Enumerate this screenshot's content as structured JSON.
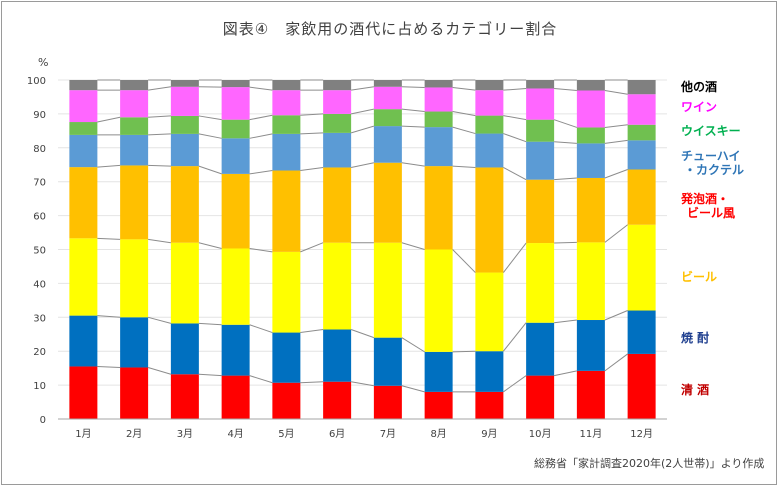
{
  "title": "図表④　家飲用の酒代に占めるカテゴリー割合",
  "y_unit": "%",
  "source": "総務省「家計調査2020年(2人世帯)」より作成",
  "legend": {
    "other": "他の酒",
    "wine": "ワイン",
    "whisky": "ウイスキー",
    "chuhai_line1": "チューハイ",
    "chuhai_line2": "・カクテル",
    "happoshu_line1": "発泡酒・",
    "happoshu_line2": "ビール風",
    "beer": "ビール",
    "shochu": "焼 酎",
    "sake": "清 酒"
  },
  "chart_data": {
    "type": "bar",
    "stacked": true,
    "categories": [
      "1月",
      "2月",
      "3月",
      "4月",
      "5月",
      "6月",
      "7月",
      "8月",
      "9月",
      "10月",
      "11月",
      "12月"
    ],
    "ylim": [
      0,
      100
    ],
    "yticks": [
      0,
      10,
      20,
      30,
      40,
      50,
      60,
      70,
      80,
      90,
      100
    ],
    "series": [
      {
        "name": "清 酒",
        "color": "#ff0000",
        "values": [
          15.5,
          15.2,
          13.2,
          12.8,
          10.7,
          11.0,
          9.8,
          8.0,
          8.0,
          12.8,
          14.2,
          19.2
        ]
      },
      {
        "name": "焼 酎",
        "color": "#0070c0",
        "values": [
          15.0,
          14.8,
          15.0,
          15.0,
          14.8,
          15.4,
          14.2,
          11.8,
          12.0,
          15.6,
          15.0,
          12.8
        ]
      },
      {
        "name": "ビール",
        "color": "#ffff00",
        "values": [
          22.8,
          23.0,
          23.8,
          22.5,
          23.8,
          25.6,
          28.0,
          30.2,
          23.2,
          23.5,
          22.9,
          25.3
        ]
      },
      {
        "name": "発泡酒・ビール風",
        "color": "#ffc000",
        "values": [
          21.0,
          21.8,
          22.6,
          22.0,
          24.0,
          22.2,
          23.6,
          24.6,
          31.0,
          18.7,
          19.0,
          16.3
        ]
      },
      {
        "name": "チューハイ・カクテル",
        "color": "#5b9bd5",
        "values": [
          9.5,
          9.0,
          9.5,
          10.5,
          10.8,
          10.2,
          10.8,
          11.5,
          10.0,
          11.2,
          10.2,
          8.6
        ]
      },
      {
        "name": "ウイスキー",
        "color": "#70c050",
        "values": [
          3.8,
          5.2,
          5.3,
          5.5,
          5.5,
          5.6,
          5.0,
          4.6,
          5.3,
          6.5,
          4.7,
          4.6
        ]
      },
      {
        "name": "ワイン",
        "color": "#ff66ff",
        "values": [
          9.4,
          8.0,
          8.6,
          9.6,
          7.4,
          7.0,
          6.6,
          7.1,
          7.5,
          9.2,
          10.9,
          9.0
        ]
      },
      {
        "name": "他の酒",
        "color": "#808080",
        "values": [
          3.0,
          3.0,
          2.0,
          2.1,
          3.0,
          3.0,
          2.0,
          2.2,
          3.0,
          2.5,
          3.1,
          4.2
        ]
      }
    ]
  }
}
